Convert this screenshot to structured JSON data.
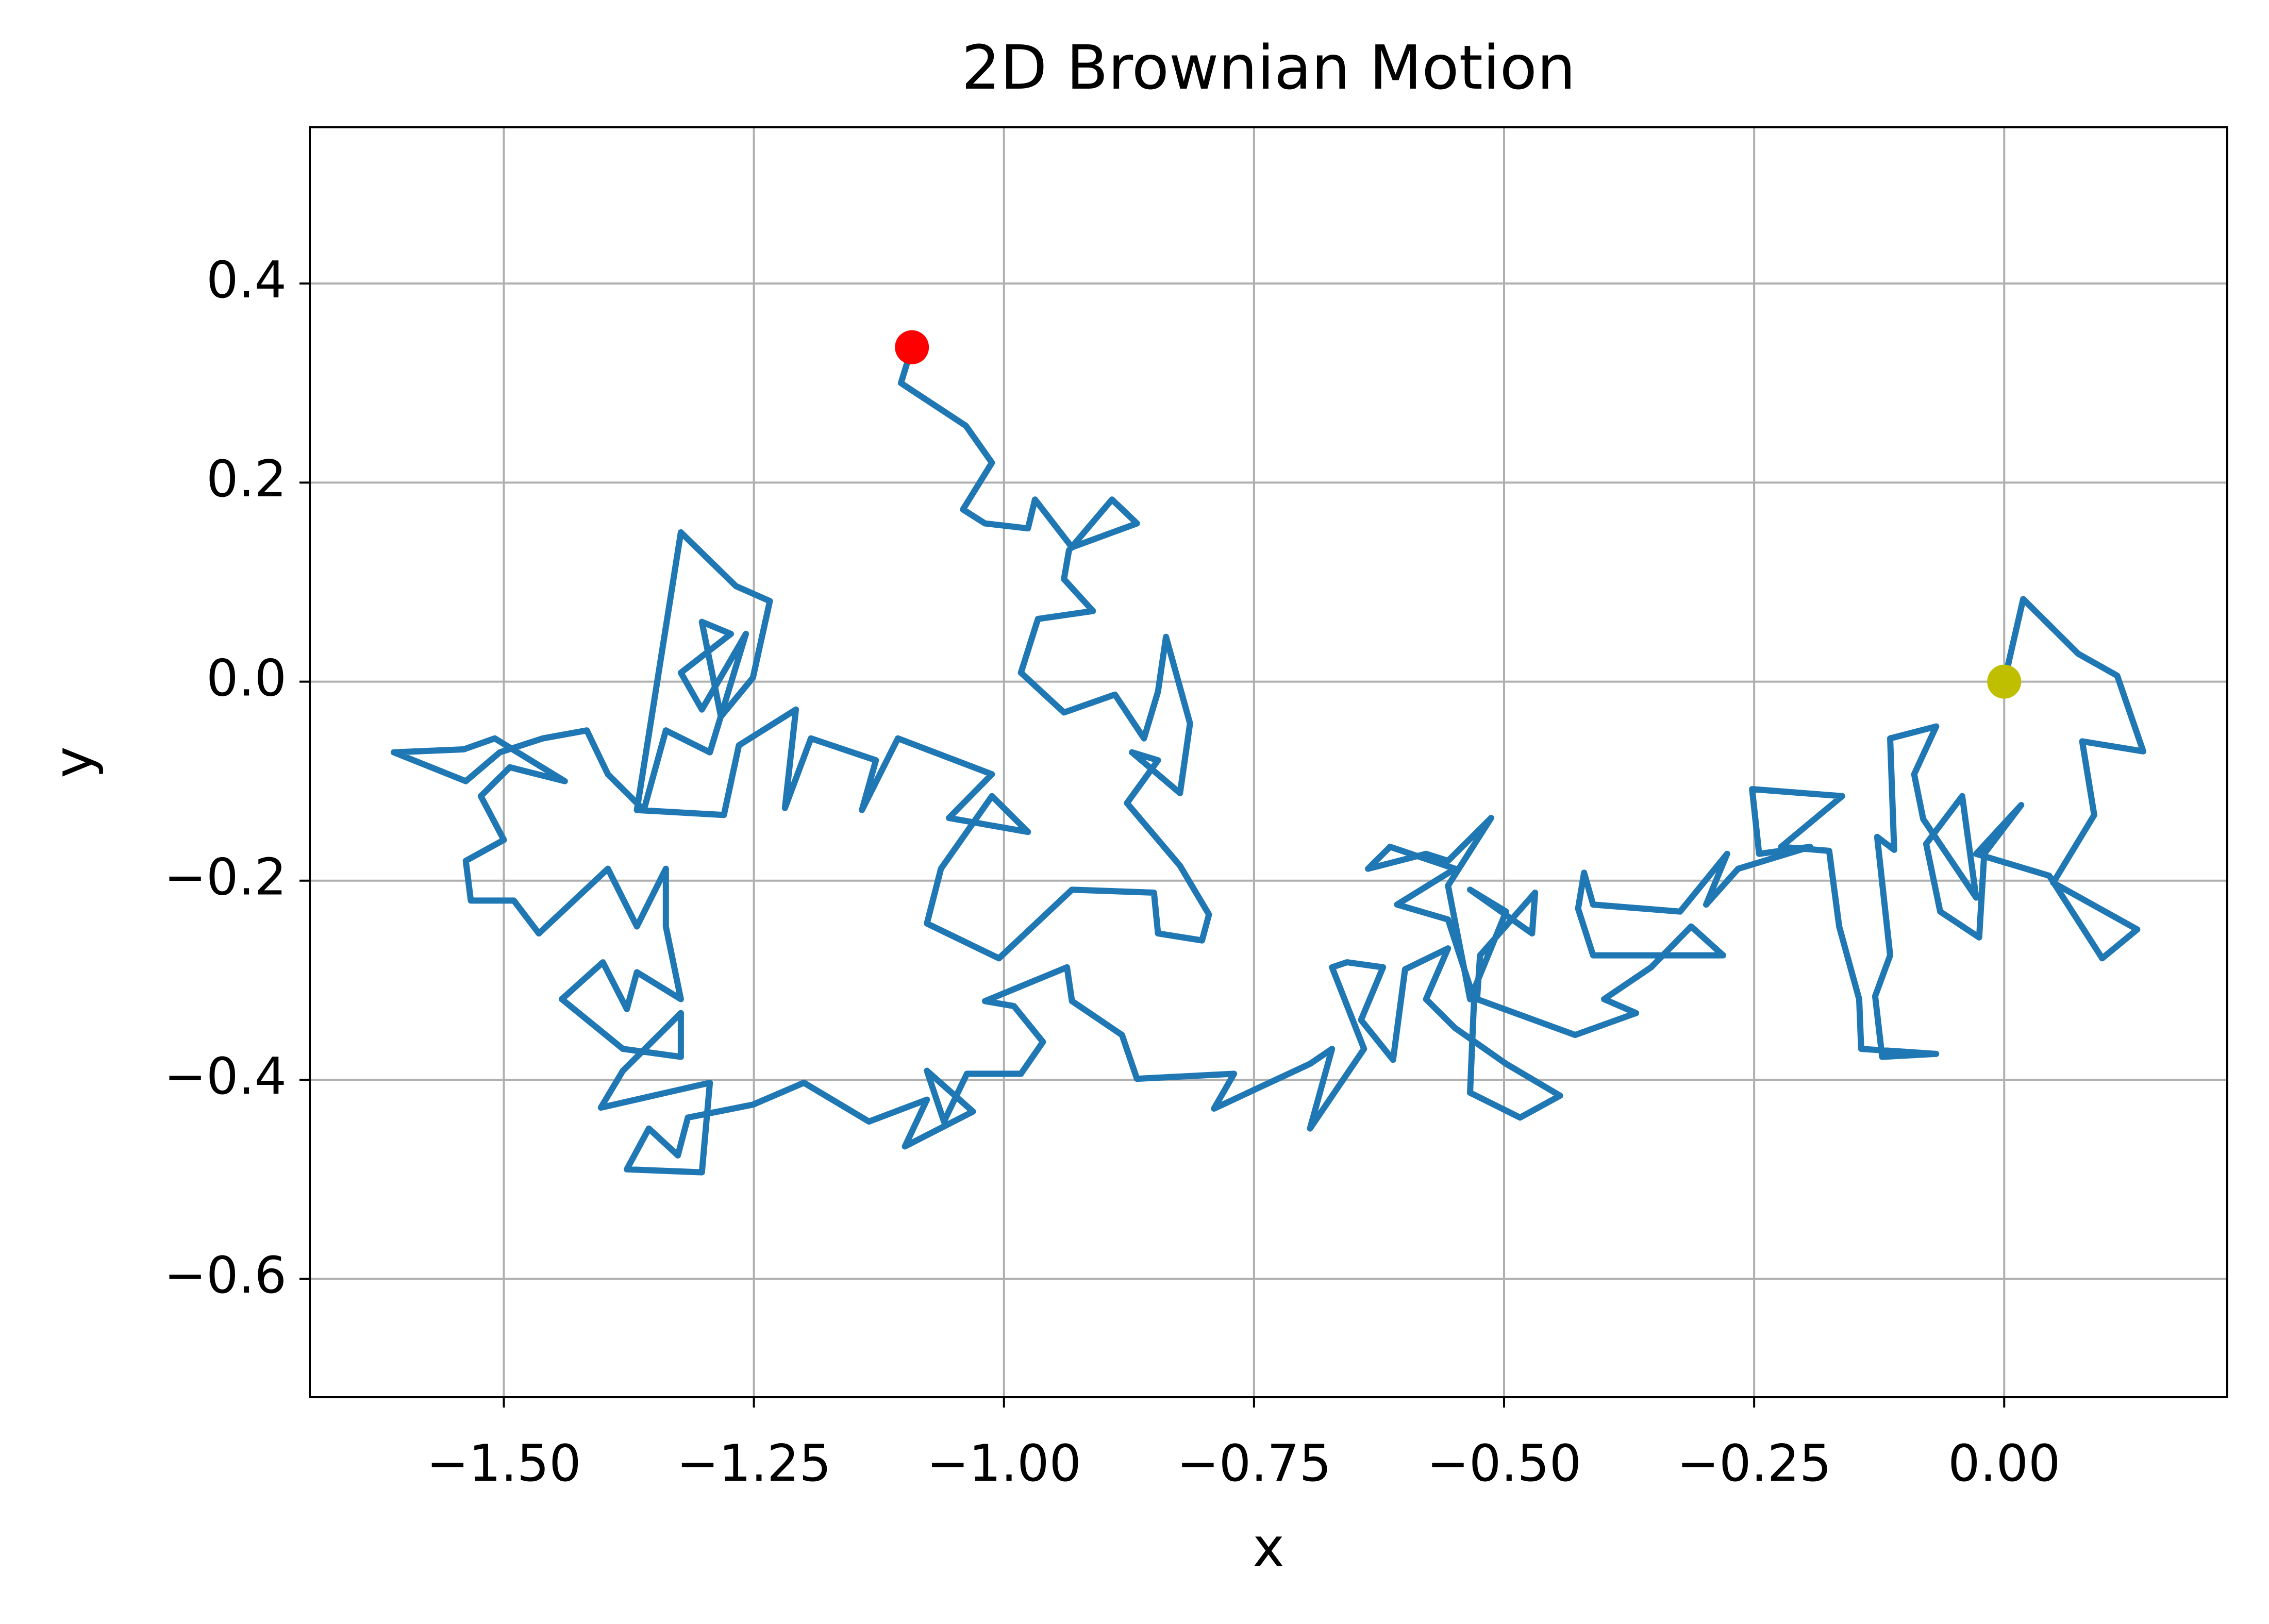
{
  "chart_data": {
    "type": "line",
    "title": "2D Brownian Motion",
    "x_label": "x",
    "y_label": "y",
    "xlim": [
      -1.694,
      0.223
    ],
    "ylim": [
      -0.719,
      0.557
    ],
    "grid": true,
    "xticks": [
      {
        "value": -1.5,
        "label": "−1.50"
      },
      {
        "value": -1.25,
        "label": "−1.25"
      },
      {
        "value": -1.0,
        "label": "−1.00"
      },
      {
        "value": -0.75,
        "label": "−0.75"
      },
      {
        "value": -0.5,
        "label": "−0.50"
      },
      {
        "value": -0.25,
        "label": "−0.25"
      },
      {
        "value": 0,
        "label": "0.00"
      }
    ],
    "yticks": [
      {
        "value": -0.6,
        "label": "−0.6"
      },
      {
        "value": -0.4,
        "label": "−0.4"
      },
      {
        "value": -0.2,
        "label": "−0.2"
      },
      {
        "value": 0,
        "label": "0.0"
      },
      0.2,
      0.4
    ],
    "series": [
      {
        "color": "#1f77b4",
        "x": [
          0,
          0.019,
          0.074,
          0.113,
          0.139,
          0.078,
          0.09,
          0.049,
          0.133,
          0.098,
          0.045,
          -0.028,
          0.017,
          -0.02,
          -0.025,
          -0.064,
          -0.078,
          -0.042,
          -0.028,
          -0.081,
          -0.09,
          -0.068,
          -0.114,
          -0.11,
          -0.127,
          -0.114,
          -0.129,
          -0.122,
          -0.068,
          -0.143,
          -0.145,
          -0.165,
          -0.175,
          -0.223,
          -0.162,
          -0.252,
          -0.245,
          -0.194,
          -0.266,
          -0.298,
          -0.277,
          -0.324,
          -0.411,
          -0.42,
          -0.426,
          -0.411,
          -0.353,
          -0.281,
          -0.313,
          -0.353,
          -0.4,
          -0.368,
          -0.429,
          -0.527,
          -0.524,
          -0.469,
          -0.472,
          -0.534,
          -0.498,
          -0.534,
          -0.556,
          -0.513,
          -0.556,
          -0.578,
          -0.636,
          -0.614,
          -0.549,
          -0.607,
          -0.556,
          -0.53,
          -0.534,
          -0.484,
          -0.444,
          -0.498,
          -0.549,
          -0.578,
          -0.556,
          -0.599,
          -0.611,
          -0.643,
          -0.621,
          -0.657,
          -0.672,
          -0.64,
          -0.694,
          -0.672,
          -0.694,
          -0.79,
          -0.77,
          -0.867,
          -0.882,
          -0.932,
          -0.937,
          -1.019,
          -0.99,
          -0.961,
          -0.983,
          -1.037,
          -1.06,
          -1.077,
          -1.031,
          -1.099,
          -1.077,
          -1.135,
          -1.2,
          -1.251,
          -1.316,
          -1.326,
          -1.355,
          -1.377,
          -1.302,
          -1.294,
          -1.403,
          -1.381,
          -1.323,
          -1.323,
          -1.381,
          -1.442,
          -1.401,
          -1.377,
          -1.367,
          -1.323,
          -1.338,
          -1.338,
          -1.367,
          -1.396,
          -1.465,
          -1.49,
          -1.533,
          -1.538,
          -1.5,
          -1.523,
          -1.494,
          -1.439,
          -1.509,
          -1.54,
          -1.61,
          -1.538,
          -1.504,
          -1.461,
          -1.417,
          -1.396,
          -1.36,
          -1.338,
          -1.294,
          -1.258,
          -1.302,
          -1.323,
          -1.273,
          -1.302,
          -1.283,
          -1.251,
          -1.234,
          -1.268,
          -1.323,
          -1.367,
          -1.28,
          -1.265,
          -1.208,
          -1.219,
          -1.193,
          -1.128,
          -1.142,
          -1.106,
          -1.012,
          -1.055,
          -0.976,
          -1.012,
          -1.063,
          -1.077,
          -1.005,
          -0.932,
          -0.85,
          -0.846,
          -0.802,
          -0.795,
          -0.824,
          -0.877,
          -0.846,
          -0.872,
          -0.824,
          -0.814,
          -0.838,
          -0.846,
          -0.86,
          -0.889,
          -0.94,
          -0.983,
          -0.966,
          -0.911,
          -0.94,
          -0.935,
          -0.892,
          -0.867,
          -0.932,
          -0.969,
          -0.976,
          -1.019,
          -1.041,
          -1.012,
          -1.038,
          -1.103,
          -1.092
        ],
        "y": [
          0,
          0.083,
          0.028,
          0.006,
          -0.07,
          -0.06,
          -0.134,
          -0.202,
          -0.249,
          -0.278,
          -0.195,
          -0.173,
          -0.124,
          -0.173,
          -0.257,
          -0.231,
          -0.163,
          -0.115,
          -0.217,
          -0.138,
          -0.093,
          -0.045,
          -0.057,
          -0.169,
          -0.156,
          -0.275,
          -0.316,
          -0.377,
          -0.374,
          -0.369,
          -0.319,
          -0.246,
          -0.17,
          -0.166,
          -0.115,
          -0.108,
          -0.173,
          -0.166,
          -0.188,
          -0.224,
          -0.173,
          -0.231,
          -0.224,
          -0.192,
          -0.228,
          -0.275,
          -0.275,
          -0.275,
          -0.246,
          -0.287,
          -0.319,
          -0.333,
          -0.355,
          -0.319,
          -0.275,
          -0.212,
          -0.253,
          -0.209,
          -0.231,
          -0.319,
          -0.205,
          -0.137,
          -0.18,
          -0.173,
          -0.188,
          -0.166,
          -0.188,
          -0.224,
          -0.239,
          -0.319,
          -0.413,
          -0.438,
          -0.416,
          -0.384,
          -0.348,
          -0.319,
          -0.268,
          -0.289,
          -0.38,
          -0.34,
          -0.287,
          -0.282,
          -0.287,
          -0.369,
          -0.449,
          -0.369,
          -0.384,
          -0.429,
          -0.394,
          -0.399,
          -0.355,
          -0.321,
          -0.287,
          -0.321,
          -0.326,
          -0.362,
          -0.394,
          -0.394,
          -0.442,
          -0.391,
          -0.432,
          -0.467,
          -0.42,
          -0.442,
          -0.403,
          -0.425,
          -0.438,
          -0.476,
          -0.449,
          -0.49,
          -0.493,
          -0.403,
          -0.428,
          -0.391,
          -0.333,
          -0.377,
          -0.369,
          -0.319,
          -0.282,
          -0.329,
          -0.292,
          -0.319,
          -0.246,
          -0.188,
          -0.246,
          -0.188,
          -0.253,
          -0.22,
          -0.22,
          -0.18,
          -0.159,
          -0.115,
          -0.086,
          -0.1,
          -0.057,
          -0.068,
          -0.071,
          -0.1,
          -0.071,
          -0.057,
          -0.049,
          -0.093,
          -0.129,
          -0.049,
          -0.071,
          0.048,
          -0.028,
          0.009,
          0.048,
          0.06,
          -0.035,
          0.004,
          0.081,
          0.096,
          0.15,
          -0.129,
          -0.134,
          -0.064,
          -0.028,
          -0.127,
          -0.057,
          -0.079,
          -0.129,
          -0.057,
          -0.093,
          -0.137,
          -0.151,
          -0.115,
          -0.188,
          -0.243,
          -0.278,
          -0.209,
          -0.212,
          -0.253,
          -0.26,
          -0.234,
          -0.185,
          -0.122,
          -0.079,
          -0.071,
          -0.112,
          -0.042,
          0.045,
          -0.01,
          -0.057,
          -0.013,
          -0.031,
          0.009,
          0.063,
          0.071,
          0.103,
          0.132,
          0.183,
          0.159,
          0.135,
          0.183,
          0.154,
          0.159,
          0.173,
          0.22,
          0.257,
          0.3,
          0.336
        ]
      }
    ],
    "points": [
      {
        "x": 0,
        "y": 0,
        "color": "#bfbf00"
      },
      {
        "x": -1.092,
        "y": 0.336,
        "color": "#ff0000"
      }
    ]
  }
}
